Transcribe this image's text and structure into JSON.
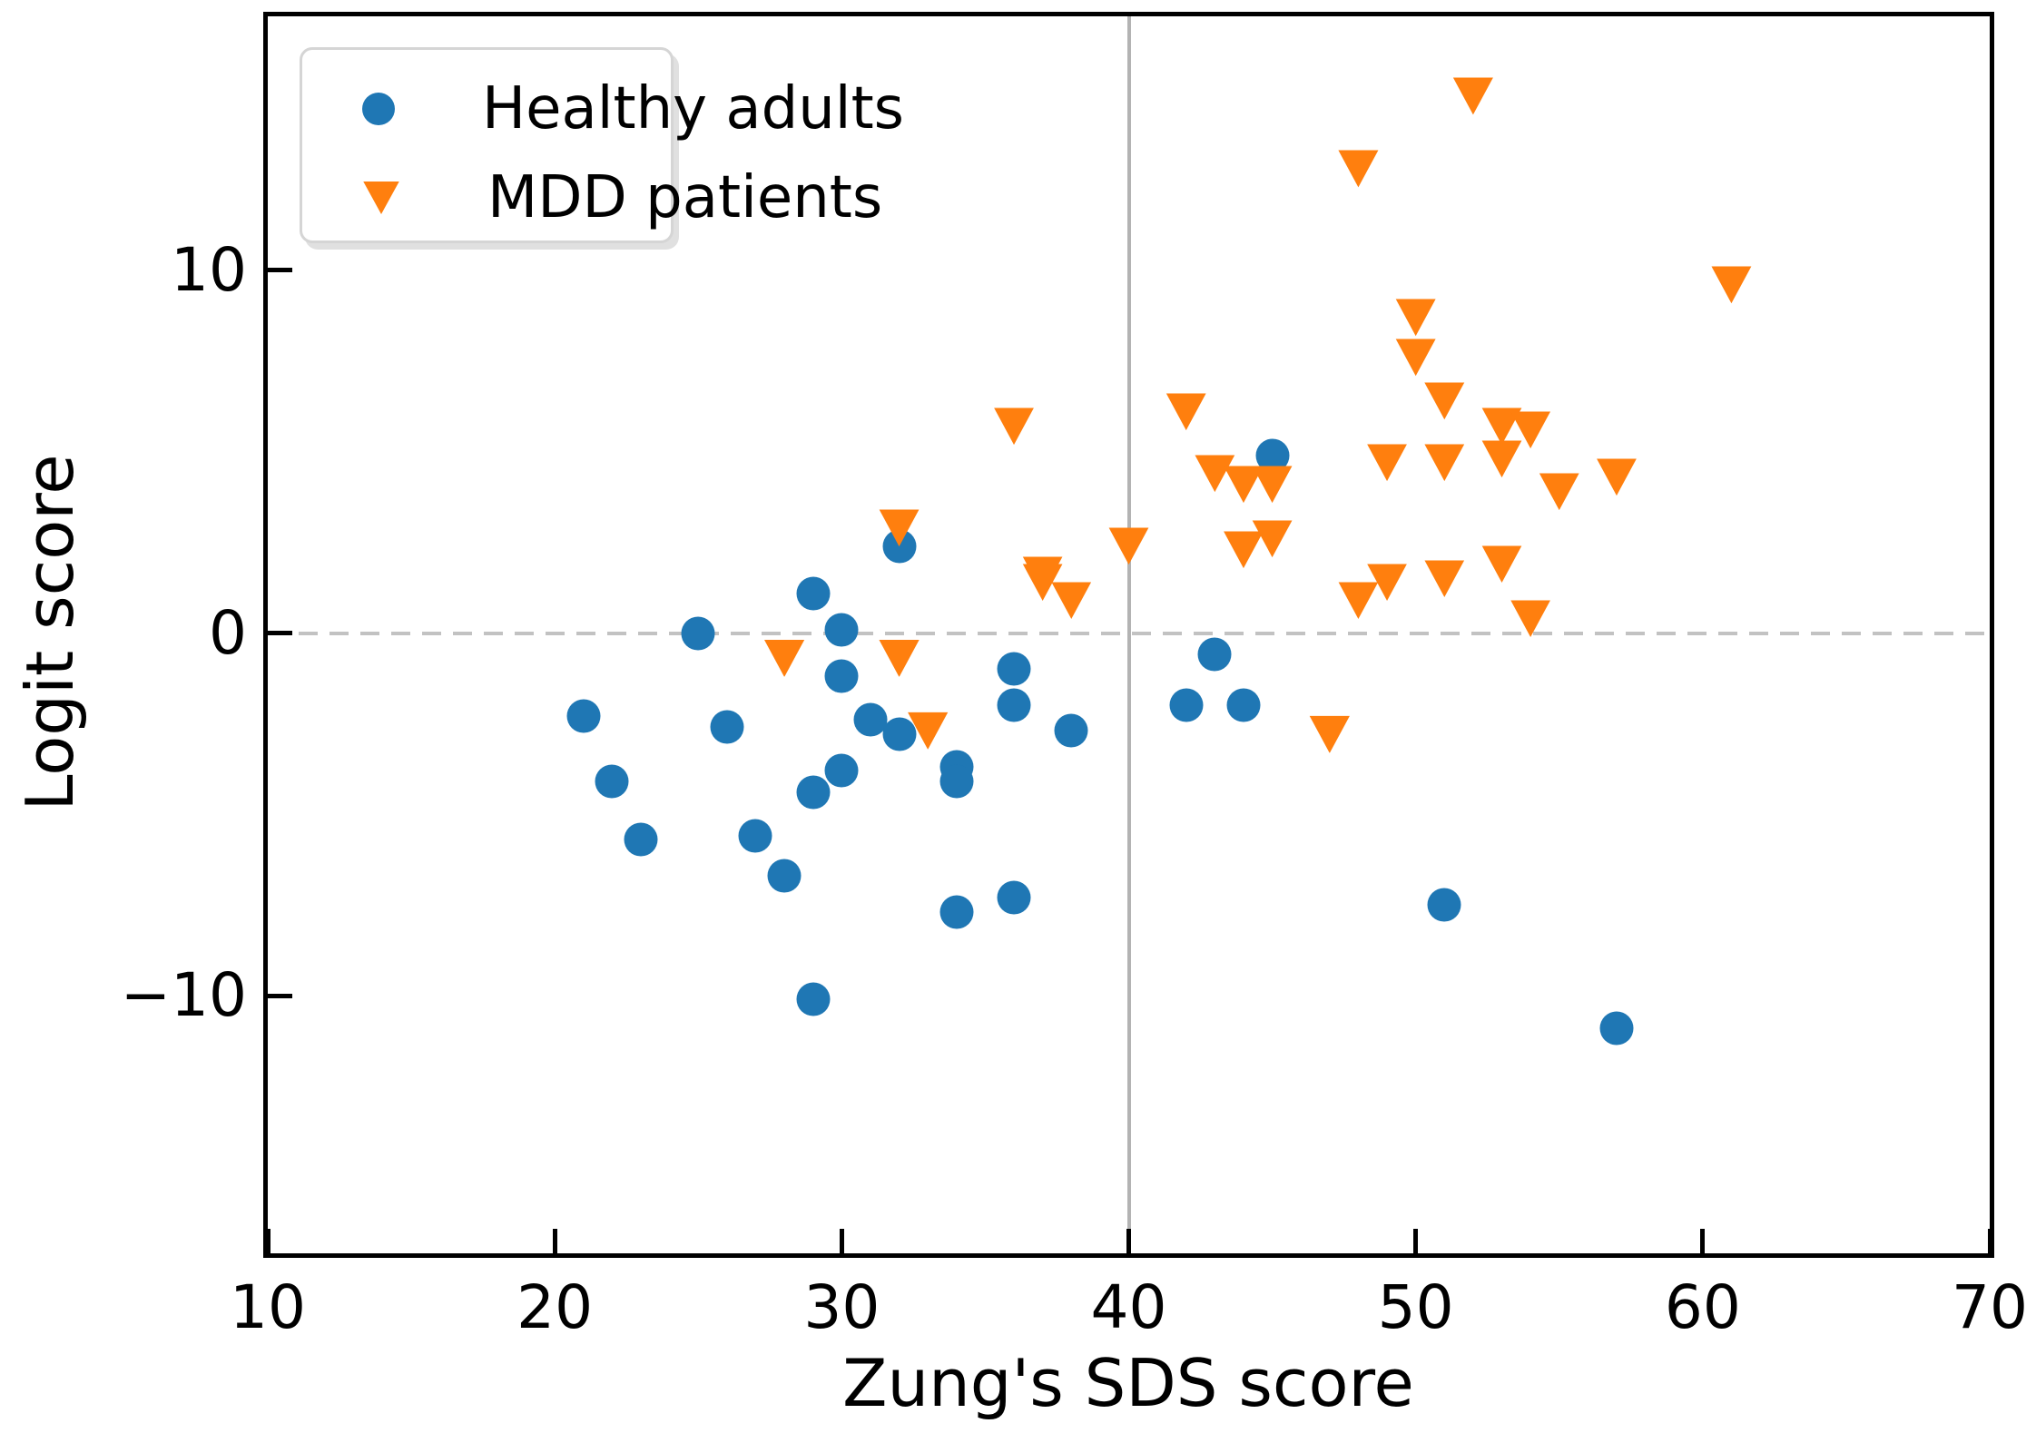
{
  "chart_data": {
    "type": "scatter",
    "title": "",
    "xlabel": "Zung's SDS score",
    "ylabel": "Logit score",
    "xlim": [
      10,
      70
    ],
    "ylim": [
      -17.1,
      17.0
    ],
    "x_ticks": [
      10,
      20,
      30,
      40,
      50,
      60,
      70
    ],
    "y_ticks": [
      -10,
      0,
      10
    ],
    "x_tick_labels": [
      "10",
      "20",
      "30",
      "40",
      "50",
      "60",
      "70"
    ],
    "y_tick_labels": [
      "−10",
      "0",
      "10"
    ],
    "grid": false,
    "legend_position": "upper left",
    "reference_lines": [
      {
        "orientation": "vertical",
        "x": 40,
        "style": "solid",
        "color": "#b3b3b3"
      },
      {
        "orientation": "horizontal",
        "y": 0,
        "style": "dashed",
        "color": "#c2c2c2"
      }
    ],
    "series": [
      {
        "name": "Healthy adults",
        "marker": "circle",
        "color": "#1f77b4",
        "points": [
          [
            21,
            -2.3
          ],
          [
            22,
            -4.1
          ],
          [
            23,
            -5.7
          ],
          [
            25,
            0.0
          ],
          [
            26,
            -2.6
          ],
          [
            27,
            -5.6
          ],
          [
            28,
            -6.7
          ],
          [
            29,
            1.1
          ],
          [
            29,
            -4.4
          ],
          [
            29,
            -10.1
          ],
          [
            30,
            0.1
          ],
          [
            30,
            -1.2
          ],
          [
            30,
            -3.8
          ],
          [
            31,
            -2.4
          ],
          [
            32,
            2.4
          ],
          [
            32,
            -2.8
          ],
          [
            34,
            -3.7
          ],
          [
            34,
            -4.1
          ],
          [
            34,
            -7.7
          ],
          [
            36,
            -1.0
          ],
          [
            36,
            -2.0
          ],
          [
            36,
            -7.3
          ],
          [
            38,
            -2.7
          ],
          [
            42,
            -2.0
          ],
          [
            43,
            -0.6
          ],
          [
            44,
            -2.0
          ],
          [
            45,
            4.9
          ],
          [
            51,
            -7.5
          ],
          [
            57,
            -10.9
          ]
        ]
      },
      {
        "name": "MDD patients",
        "marker": "triangle-down",
        "color": "#ff7f0e",
        "points": [
          [
            28,
            -0.7
          ],
          [
            32,
            2.9
          ],
          [
            32,
            -0.7
          ],
          [
            33,
            -2.7
          ],
          [
            36,
            5.7
          ],
          [
            37,
            1.6
          ],
          [
            37,
            1.4
          ],
          [
            38,
            0.9
          ],
          [
            40,
            2.4
          ],
          [
            42,
            6.1
          ],
          [
            43,
            4.4
          ],
          [
            44,
            4.1
          ],
          [
            45,
            4.1
          ],
          [
            44,
            2.3
          ],
          [
            45,
            2.6
          ],
          [
            47,
            -2.8
          ],
          [
            48,
            12.8
          ],
          [
            48,
            0.9
          ],
          [
            49,
            4.7
          ],
          [
            49,
            1.4
          ],
          [
            50,
            8.7
          ],
          [
            50,
            7.6
          ],
          [
            51,
            6.4
          ],
          [
            51,
            4.7
          ],
          [
            51,
            1.5
          ],
          [
            52,
            14.8
          ],
          [
            53,
            5.7
          ],
          [
            53,
            4.8
          ],
          [
            53,
            1.9
          ],
          [
            54,
            5.6
          ],
          [
            54,
            0.4
          ],
          [
            55,
            3.9
          ],
          [
            57,
            4.3
          ],
          [
            61,
            9.6
          ]
        ]
      }
    ]
  },
  "legend": {
    "items": [
      {
        "label": "Healthy adults",
        "marker": "circle-icon",
        "color": "#1f77b4"
      },
      {
        "label": "MDD patients",
        "marker": "triangle-down-icon",
        "color": "#ff7f0e"
      }
    ]
  }
}
